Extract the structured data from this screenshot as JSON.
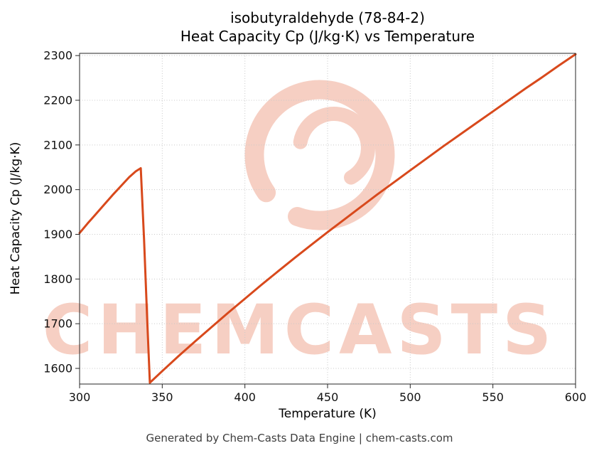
{
  "title": {
    "line1": "isobutyraldehyde (78-84-2)",
    "line2": "Heat Capacity Cp (J/kg·K) vs Temperature"
  },
  "watermark": {
    "text": "CHEMCASTS",
    "color": "#f6cfc3"
  },
  "footer": {
    "text": "Generated by Chem-Casts Data Engine | chem-casts.com"
  },
  "chart_data": {
    "type": "line",
    "title": "isobutyraldehyde (78-84-2) Heat Capacity Cp (J/kg·K) vs Temperature",
    "xlabel": "Temperature (K)",
    "ylabel": "Heat Capacity Cp (J/kg·K)",
    "xlim": [
      300,
      600
    ],
    "ylim": [
      1565,
      2305
    ],
    "x_ticks": [
      300,
      350,
      400,
      450,
      500,
      550,
      600
    ],
    "y_ticks": [
      1600,
      1700,
      1800,
      1900,
      2000,
      2100,
      2200,
      2300
    ],
    "grid": true,
    "grid_style": "dotted",
    "legend": "none",
    "line_color": "#d8491c",
    "series": [
      {
        "name": "Heat Capacity Cp",
        "points": [
          [
            300,
            1903
          ],
          [
            305,
            1925
          ],
          [
            310,
            1946
          ],
          [
            315,
            1967
          ],
          [
            320,
            1988
          ],
          [
            325,
            2008
          ],
          [
            330,
            2028
          ],
          [
            334,
            2041
          ],
          [
            337,
            2048
          ],
          [
            339,
            1890
          ],
          [
            341,
            1700
          ],
          [
            342.5,
            1568
          ],
          [
            350,
            1594
          ],
          [
            360,
            1628
          ],
          [
            370,
            1661
          ],
          [
            380,
            1693
          ],
          [
            390,
            1725
          ],
          [
            400,
            1756
          ],
          [
            410,
            1787
          ],
          [
            420,
            1817
          ],
          [
            430,
            1847
          ],
          [
            440,
            1876
          ],
          [
            450,
            1905
          ],
          [
            460,
            1933
          ],
          [
            470,
            1961
          ],
          [
            480,
            1989
          ],
          [
            490,
            2016
          ],
          [
            500,
            2043
          ],
          [
            510,
            2070
          ],
          [
            520,
            2097
          ],
          [
            530,
            2123
          ],
          [
            540,
            2149
          ],
          [
            550,
            2175
          ],
          [
            560,
            2201
          ],
          [
            570,
            2227
          ],
          [
            580,
            2252
          ],
          [
            590,
            2278
          ],
          [
            600,
            2303
          ]
        ]
      }
    ],
    "annotations": {
      "segment_description": "Liquid Cp rises 300 K to ~337 K, sharp drop at boiling point to ~1568 at ~342.5 K, then vapor Cp rises to 600 K"
    }
  }
}
